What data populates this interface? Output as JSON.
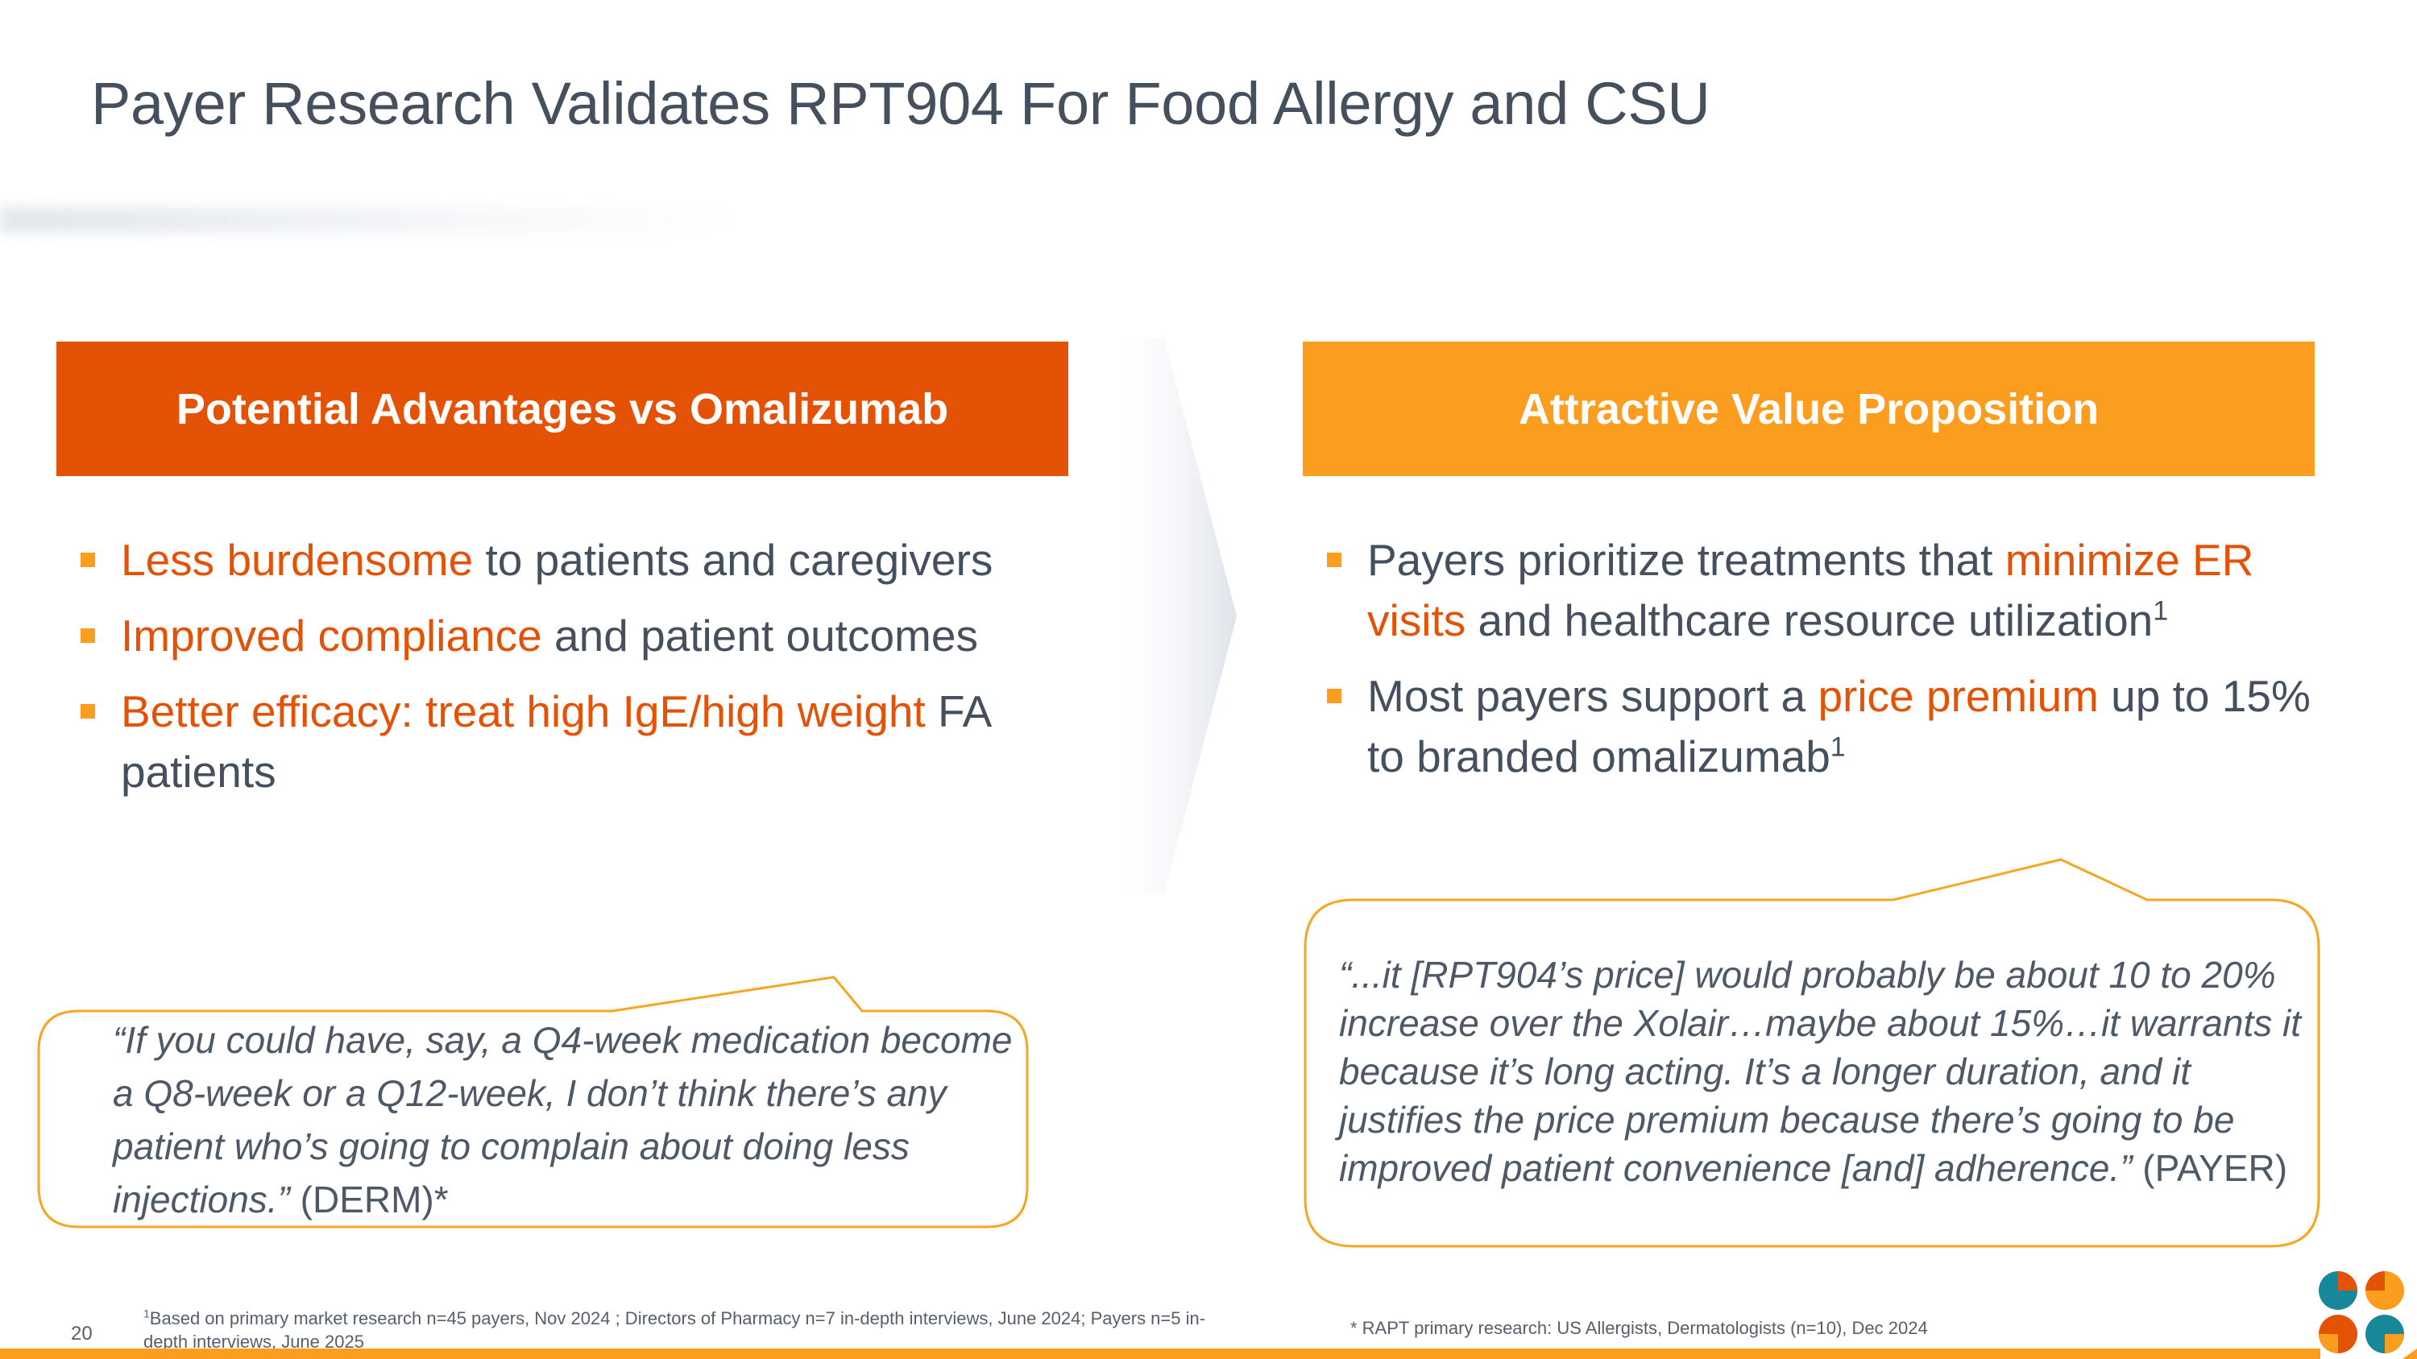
{
  "title": "Payer Research Validates RPT904 For Food Allergy and CSU",
  "left": {
    "header": "Potential Advantages vs Omalizumab",
    "bullets": [
      {
        "highlight": "Less burdensome",
        "rest": " to patients and caregivers"
      },
      {
        "highlight": "Improved compliance",
        "rest": " and patient outcomes"
      },
      {
        "highlight": "Better efficacy: treat high IgE/high weight",
        "rest": " FA patients"
      }
    ],
    "quote": {
      "text": "“If you could have, say, a Q4-week medication become a Q8-week or a Q12-week, I don’t think there’s any patient who’s going to complain about doing less injections.”",
      "attribution": " (DERM)*"
    }
  },
  "right": {
    "header": "Attractive Value Proposition",
    "bullet1": {
      "pre": "Payers prioritize treatments that ",
      "highlight": "minimize ER visits",
      "rest": " and healthcare resource utilization",
      "sup": "1"
    },
    "bullet2": {
      "pre": "Most payers support a ",
      "highlight": "price premium",
      "rest": " up to 15% to branded omalizumab",
      "sup": "1"
    },
    "quote": {
      "text": "“...it [RPT904’s price] would probably be about 10 to 20% increase over the Xolair…maybe about 15%…it warrants it because it’s long acting. It’s a longer duration, and it justifies the price premium because there’s going to be improved patient convenience [and] adherence.”",
      "attribution": " (PAYER)"
    }
  },
  "footnotes": {
    "sup": "1",
    "note1": "Based on primary market research n=45 payers, Nov 2024 ; Directors of Pharmacy n=7 in-depth interviews, June 2024; Payers n=5 in-depth interviews, June 2025",
    "note2": "* RAPT primary research: US Allergists, Dermatologists (n=10), Dec 2024"
  },
  "page_number": "20",
  "colors": {
    "accent_dark_orange": "#e35205",
    "accent_orange": "#fb9e1f",
    "text_gray": "#44505d",
    "logo_teal": "#17889a"
  },
  "icons": {
    "bullet": "orange-square-bullet",
    "logo": "rapt-logo-icon"
  }
}
